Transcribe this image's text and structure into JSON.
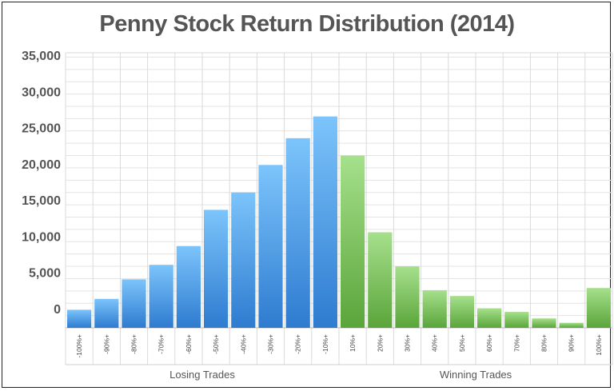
{
  "chart_data": {
    "type": "bar",
    "title": "Penny Stock Return Distribution (2014)",
    "categories": [
      "-100%+",
      "-90%+",
      "-80%+",
      "-70%+",
      "-60%+",
      "-50%+",
      "-40%+",
      "-30%+",
      "-20%+",
      "-10%+",
      "10%+",
      "20%+",
      "30%+",
      "40%+",
      "50%+",
      "60%+",
      "70%+",
      "80%+",
      "90%+",
      "100%+"
    ],
    "values": [
      2500,
      4000,
      6700,
      8700,
      11300,
      16300,
      18700,
      22500,
      26200,
      29200,
      23800,
      13200,
      8500,
      5200,
      4400,
      2700,
      2200,
      1300,
      700,
      5500
    ],
    "ylim": [
      0,
      38000
    ],
    "yticks": [
      {
        "label": "0",
        "value": 0
      },
      {
        "label": "5,000",
        "value": 5000
      },
      {
        "label": "10,000",
        "value": 10000
      },
      {
        "label": "15,000",
        "value": 15000
      },
      {
        "label": "20,000",
        "value": 20000
      },
      {
        "label": "25,000",
        "value": 25000
      },
      {
        "label": "30,000",
        "value": 30000
      },
      {
        "label": "35,000",
        "value": 35000
      }
    ],
    "groups": [
      {
        "label": "Losing Trades",
        "color_top": "#7cc4fb",
        "color_bottom": "#2e7bd0"
      },
      {
        "label": "Winning Trades",
        "color_top": "#a6e08c",
        "color_bottom": "#5aa53a"
      }
    ],
    "grid": true
  }
}
